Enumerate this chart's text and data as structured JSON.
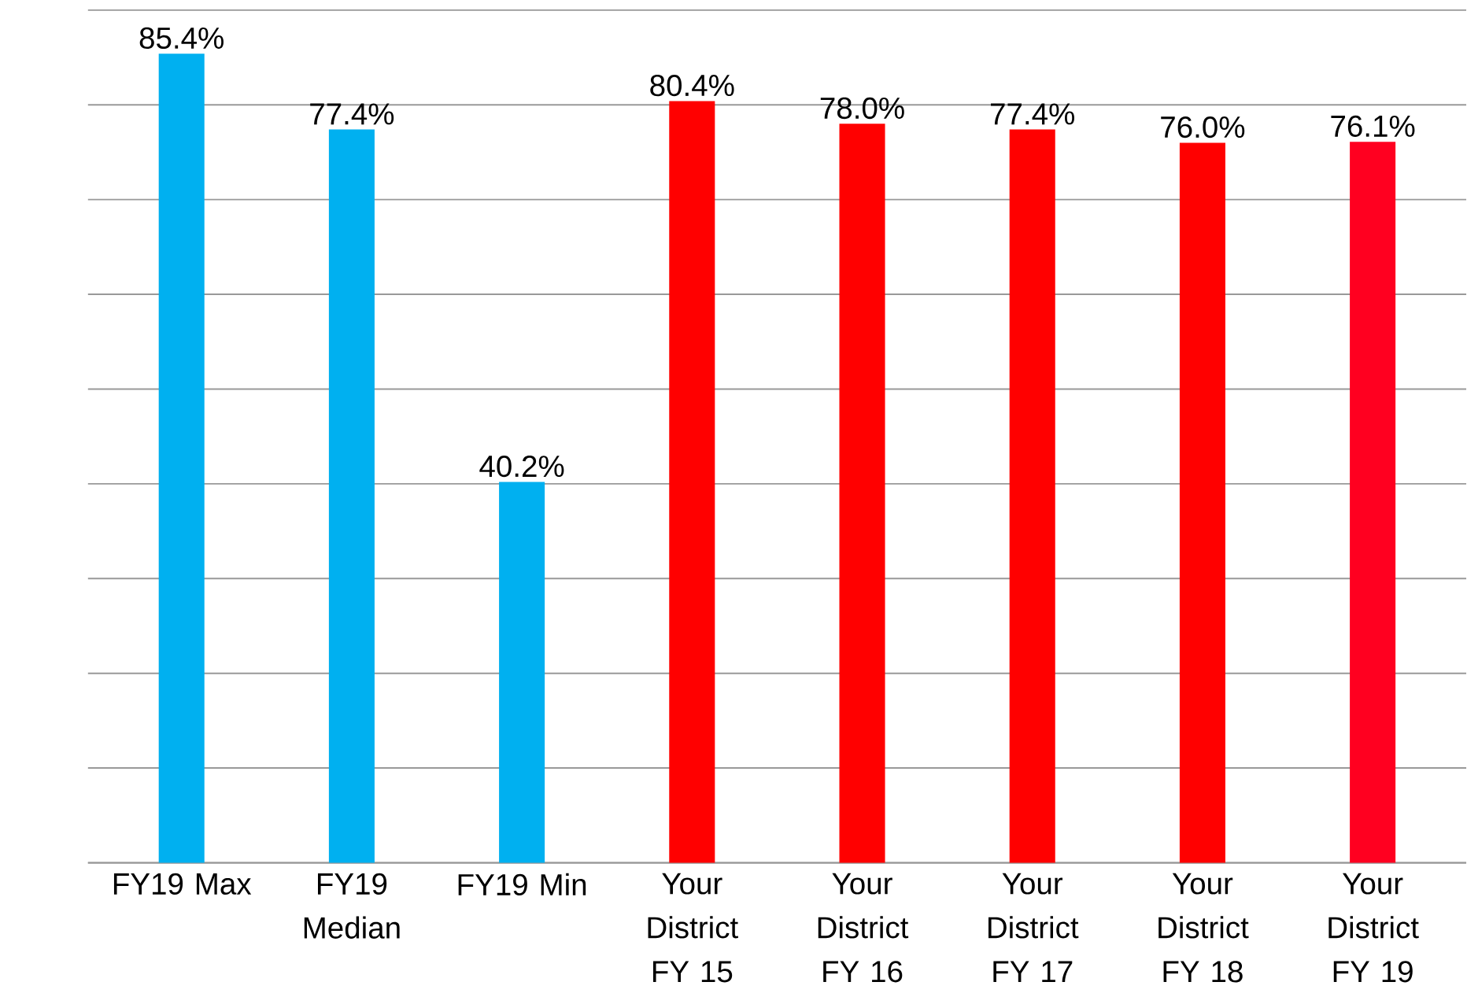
{
  "chart_data": {
    "type": "bar",
    "categories": [
      "FY19 Max",
      "FY19 Median",
      "FY19 Min",
      "Your District FY 15",
      "Your District FY 16",
      "Your District FY 17",
      "Your District FY 18",
      "Your District FY 19"
    ],
    "values": [
      85.4,
      77.4,
      40.2,
      80.4,
      78.0,
      77.4,
      76.0,
      76.1
    ],
    "value_labels": [
      "85.4%",
      "77.4%",
      "40.2%",
      "80.4%",
      "78.0%",
      "77.4%",
      "76.0%",
      "76.1%"
    ],
    "colors": [
      "#00b0f0",
      "#00b0f0",
      "#00b0f0",
      "#ff0000",
      "#ff0000",
      "#ff0000",
      "#ff0000",
      "#ff0020"
    ],
    "ylim": [
      0,
      90
    ],
    "yticks": [
      {
        "value": 0,
        "label": null
      },
      {
        "value": 10,
        "label": null
      },
      {
        "value": 20,
        "label": null
      },
      {
        "value": 30,
        "label": null
      },
      {
        "value": 40,
        "label": null
      },
      {
        "value": 50,
        "label": null
      },
      {
        "value": 60,
        "label": null
      },
      {
        "value": 70,
        "label": null
      },
      {
        "value": 80,
        "label": null
      },
      {
        "value": 90,
        "label": null
      }
    ],
    "grid": "y",
    "tick_labels": "x"
  }
}
